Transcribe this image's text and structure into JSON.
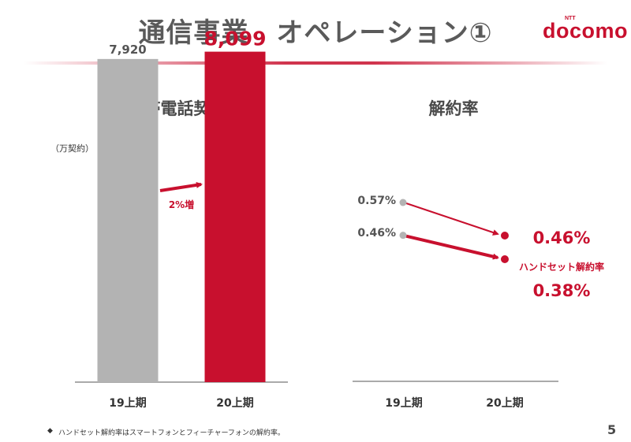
{
  "header": {
    "title": "通信事業　オペレーション①",
    "logo_small": "NTT",
    "logo_text": "docomo",
    "page_number": "5"
  },
  "colors": {
    "accent": "#c8102e",
    "gray_bar": "#b3b3b3",
    "gray_point": "#b3b3b3",
    "text_dark": "#4a4a4a"
  },
  "footnote": {
    "bullet": "◆",
    "text": "ハンドセット解約率はスマートフォンとフィーチャーフォンの解約率。"
  },
  "chart_data": [
    {
      "type": "bar",
      "title": "携帯電話契約数",
      "unit": "（万契約）",
      "categories": [
        "19上期",
        "20上期"
      ],
      "values": [
        7920,
        8099
      ],
      "value_labels": [
        "7,920",
        "8,099"
      ],
      "ylim": [
        0,
        8400
      ],
      "annotation": "2%増"
    },
    {
      "type": "line",
      "title": "解約率",
      "categories": [
        "19上期",
        "20上期"
      ],
      "series": [
        {
          "name": "解約率",
          "values": [
            0.57,
            0.46
          ],
          "labels": [
            "0.57%",
            "0.46%"
          ]
        },
        {
          "name": "ハンドセット解約率",
          "values": [
            0.46,
            0.38
          ],
          "labels": [
            "0.46%",
            "0.38%"
          ]
        }
      ],
      "ylim": [
        0.0,
        0.65
      ]
    }
  ]
}
